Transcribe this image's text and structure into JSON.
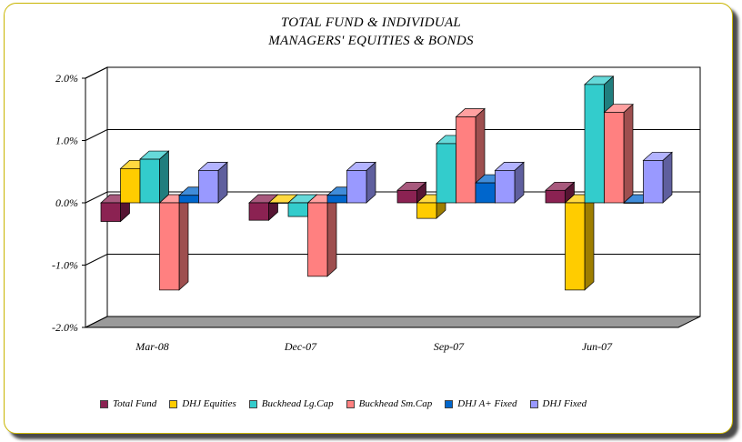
{
  "chart_data": {
    "type": "bar",
    "title": "TOTAL FUND  & INDIVIDUAL",
    "subtitle": "MANAGERS' EQUITIES & BONDS",
    "xlabel": "",
    "ylabel": "",
    "ylim": [
      -2.0,
      2.0
    ],
    "y_ticks": [
      "2.0%",
      "1.0%",
      "0.0%",
      "-1.0%",
      "-2.0%"
    ],
    "categories": [
      "Mar-08",
      "Dec-07",
      "Sep-07",
      "Jun-07"
    ],
    "grid": true,
    "legend_position": "bottom",
    "series": [
      {
        "name": "Total Fund",
        "color": "#8b2252",
        "values": [
          -0.3,
          -0.28,
          0.2,
          0.2
        ]
      },
      {
        "name": "DHJ Equities",
        "color": "#ffcc00",
        "values": [
          0.55,
          0.0,
          -0.25,
          -1.4
        ]
      },
      {
        "name": "Buckhead Lg.Cap",
        "color": "#33cccc",
        "values": [
          0.7,
          -0.22,
          0.95,
          1.9
        ]
      },
      {
        "name": "Buckhead Sm.Cap",
        "color": "#ff8080",
        "values": [
          -1.4,
          -1.18,
          1.38,
          1.45
        ]
      },
      {
        "name": "DHJ A+ Fixed",
        "color": "#0066cc",
        "values": [
          0.12,
          0.12,
          0.32,
          0.0
        ]
      },
      {
        "name": "DHJ Fixed",
        "color": "#9999ff",
        "values": [
          0.52,
          0.52,
          0.52,
          0.68
        ]
      }
    ]
  }
}
